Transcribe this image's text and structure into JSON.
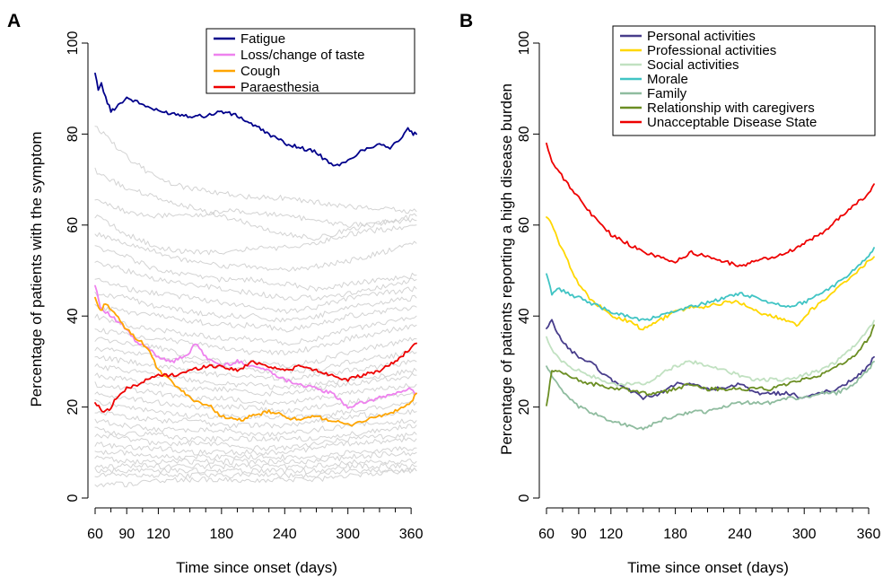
{
  "chart_data": [
    {
      "panel": "A",
      "type": "line",
      "xlabel": "Time since onset (days)",
      "ylabel": "Percentage of patients with the symptom",
      "xlim": [
        60,
        365
      ],
      "ylim": [
        0,
        100
      ],
      "xticks": [
        60,
        90,
        120,
        180,
        240,
        300,
        360
      ],
      "yticks": [
        0,
        20,
        40,
        60,
        80,
        100
      ],
      "legend_position": "top-right",
      "grid": false,
      "series": [
        {
          "name": "Fatigue",
          "color": "#00008b",
          "x": [
            60,
            63,
            66,
            70,
            75,
            80,
            90,
            100,
            110,
            120,
            135,
            150,
            165,
            180,
            195,
            210,
            225,
            240,
            255,
            270,
            280,
            290,
            300,
            310,
            320,
            330,
            340,
            350,
            357,
            362,
            365
          ],
          "y": [
            93,
            90,
            91,
            88,
            85,
            86,
            88,
            87,
            86,
            85,
            84.5,
            84,
            84,
            85,
            84,
            82,
            80,
            78,
            77,
            76,
            74,
            73,
            74,
            76,
            77,
            78,
            77,
            79,
            81,
            80,
            80
          ]
        },
        {
          "name": "Loss/change of taste",
          "color": "#ee82ee",
          "x": [
            60,
            65,
            70,
            80,
            90,
            100,
            110,
            120,
            135,
            150,
            155,
            165,
            180,
            195,
            210,
            225,
            240,
            255,
            270,
            285,
            300,
            315,
            330,
            345,
            360,
            365
          ],
          "y": [
            47,
            42,
            41,
            39,
            37,
            34,
            33,
            31,
            30,
            32,
            34,
            31,
            29,
            30,
            29,
            28,
            26,
            25,
            24,
            23,
            20,
            21,
            22,
            23,
            24,
            23
          ]
        },
        {
          "name": "Cough",
          "color": "#ffa500",
          "x": [
            60,
            65,
            70,
            80,
            90,
            100,
            110,
            120,
            130,
            140,
            150,
            160,
            170,
            180,
            195,
            210,
            225,
            240,
            255,
            270,
            285,
            300,
            315,
            330,
            345,
            360,
            365
          ],
          "y": [
            44,
            41,
            43,
            40,
            37,
            35,
            33,
            28,
            26,
            24,
            22,
            21,
            20,
            18,
            17,
            18,
            19,
            18,
            17,
            18,
            17,
            16,
            17,
            18,
            19,
            21,
            23
          ]
        },
        {
          "name": "Paraesthesia",
          "color": "#ee0000",
          "x": [
            60,
            65,
            70,
            75,
            80,
            90,
            100,
            110,
            120,
            135,
            150,
            165,
            180,
            195,
            210,
            225,
            240,
            255,
            270,
            285,
            300,
            315,
            330,
            345,
            360,
            365
          ],
          "y": [
            21,
            19.5,
            19,
            20,
            22,
            24,
            25,
            26,
            27,
            27,
            28,
            29,
            29,
            28,
            30,
            29,
            28,
            29,
            28,
            27,
            26,
            27,
            28,
            30,
            33,
            34
          ]
        }
      ],
      "background_series": {
        "color": "#d3d3d3",
        "series": [
          [
            82,
            75,
            70,
            68,
            67,
            66,
            66,
            65,
            64,
            63
          ],
          [
            72,
            68,
            66,
            64,
            62,
            60,
            58,
            57,
            59,
            62
          ],
          [
            66,
            63,
            62,
            62,
            63,
            63,
            62,
            61,
            60,
            61
          ],
          [
            62,
            58,
            55,
            54,
            54,
            55,
            55,
            56,
            58,
            60
          ],
          [
            58,
            56,
            54,
            52,
            51,
            51,
            50,
            51,
            52,
            56
          ],
          [
            55,
            53,
            50,
            49,
            48,
            48,
            47,
            46,
            47,
            49
          ],
          [
            52,
            50,
            48,
            47,
            46,
            45,
            44,
            44,
            45,
            48
          ],
          [
            48,
            46,
            45,
            44,
            43,
            42,
            41,
            42,
            44,
            46
          ],
          [
            45,
            44,
            42,
            41,
            40,
            40,
            39,
            40,
            42,
            44
          ],
          [
            42,
            41,
            40,
            39,
            38,
            38,
            37,
            38,
            40,
            42
          ],
          [
            40,
            38,
            37,
            36,
            35,
            35,
            34,
            35,
            37,
            40
          ],
          [
            37,
            36,
            35,
            34,
            33,
            32,
            32,
            33,
            35,
            38
          ],
          [
            35,
            34,
            33,
            31,
            30,
            30,
            29,
            30,
            32,
            35
          ],
          [
            33,
            32,
            31,
            30,
            29,
            28,
            28,
            28,
            30,
            32
          ],
          [
            31,
            30,
            29,
            28,
            27,
            27,
            26,
            27,
            28,
            30
          ],
          [
            29,
            28,
            27,
            26,
            25,
            25,
            24,
            25,
            26,
            28
          ],
          [
            27,
            26,
            25,
            24,
            24,
            23,
            23,
            24,
            25,
            27
          ],
          [
            25,
            24,
            23,
            22,
            22,
            21,
            21,
            22,
            23,
            25
          ],
          [
            23,
            22,
            21,
            20,
            20,
            20,
            19,
            20,
            21,
            23
          ],
          [
            21,
            20,
            19,
            18,
            18,
            18,
            18,
            18,
            19,
            21
          ],
          [
            19,
            18,
            17,
            17,
            16,
            16,
            16,
            17,
            18,
            19
          ],
          [
            17,
            16,
            15,
            15,
            15,
            14,
            14,
            15,
            16,
            17
          ],
          [
            15,
            14,
            14,
            13,
            13,
            13,
            13,
            13,
            14,
            16
          ],
          [
            14,
            13,
            12,
            12,
            12,
            11,
            11,
            12,
            13,
            14
          ],
          [
            12,
            11,
            11,
            10,
            10,
            10,
            10,
            11,
            12,
            13
          ],
          [
            10,
            10,
            9,
            9,
            9,
            9,
            9,
            9,
            10,
            11
          ],
          [
            9,
            8,
            8,
            8,
            8,
            8,
            8,
            8,
            9,
            10
          ],
          [
            7,
            7,
            7,
            7,
            7,
            7,
            7,
            7,
            8,
            8
          ],
          [
            6,
            6,
            6,
            6,
            6,
            6,
            6,
            6,
            7,
            7
          ],
          [
            5,
            5,
            5,
            5,
            5,
            5,
            5,
            5,
            6,
            6
          ],
          [
            3,
            3,
            4,
            4,
            4,
            4,
            4,
            4,
            5,
            6
          ]
        ],
        "x": [
          60,
          90,
          120,
          150,
          180,
          210,
          240,
          270,
          300,
          365
        ]
      }
    },
    {
      "panel": "B",
      "type": "line",
      "xlabel": "Time since onset (days)",
      "ylabel": "Percentage of patients reporting a high disease burden",
      "xlim": [
        60,
        365
      ],
      "ylim": [
        0,
        100
      ],
      "xticks": [
        60,
        90,
        120,
        180,
        240,
        300,
        360
      ],
      "yticks": [
        0,
        20,
        40,
        60,
        80,
        100
      ],
      "legend_position": "top-right",
      "grid": false,
      "series": [
        {
          "name": "Personal activities",
          "color": "#483d8b",
          "x": [
            60,
            65,
            70,
            80,
            90,
            100,
            110,
            120,
            135,
            150,
            165,
            180,
            195,
            210,
            225,
            240,
            255,
            270,
            285,
            300,
            315,
            330,
            345,
            360,
            365
          ],
          "y": [
            37,
            39,
            36,
            33,
            31,
            30,
            28,
            26,
            24,
            22,
            23,
            25,
            25,
            24,
            24,
            25,
            23,
            23,
            23,
            22,
            23,
            24,
            26,
            29,
            31
          ]
        },
        {
          "name": "Professional activities",
          "color": "#ffd700",
          "x": [
            60,
            65,
            70,
            80,
            90,
            100,
            110,
            120,
            135,
            150,
            165,
            180,
            195,
            210,
            225,
            240,
            255,
            270,
            285,
            295,
            300,
            315,
            330,
            345,
            360,
            365
          ],
          "y": [
            62,
            60,
            57,
            52,
            47,
            44,
            42,
            40,
            39,
            37,
            39,
            41,
            42,
            42,
            43,
            43,
            41,
            40,
            39,
            38,
            40,
            43,
            46,
            49,
            52,
            53
          ]
        },
        {
          "name": "Social activities",
          "color": "#c1e1c1",
          "x": [
            60,
            65,
            70,
            80,
            90,
            100,
            110,
            120,
            135,
            150,
            165,
            180,
            195,
            210,
            225,
            240,
            255,
            270,
            285,
            300,
            315,
            330,
            345,
            360,
            365
          ],
          "y": [
            35,
            33,
            31,
            29,
            28,
            27,
            26,
            25,
            25,
            25,
            27,
            29,
            30,
            29,
            28,
            27,
            26,
            26,
            26,
            27,
            28,
            30,
            33,
            37,
            39
          ]
        },
        {
          "name": "Morale",
          "color": "#40c4c4",
          "x": [
            60,
            65,
            70,
            80,
            90,
            100,
            110,
            120,
            135,
            150,
            165,
            180,
            195,
            210,
            225,
            240,
            255,
            270,
            285,
            300,
            315,
            330,
            345,
            360,
            365
          ],
          "y": [
            49,
            45,
            46,
            45,
            44,
            43,
            42,
            41,
            40,
            39,
            40,
            41,
            42,
            43,
            44,
            45,
            44,
            43,
            42,
            43,
            45,
            47,
            50,
            53,
            55
          ]
        },
        {
          "name": "Family",
          "color": "#8fbc9f",
          "x": [
            60,
            65,
            70,
            80,
            90,
            100,
            110,
            120,
            135,
            150,
            165,
            180,
            195,
            210,
            225,
            240,
            255,
            270,
            285,
            300,
            315,
            330,
            345,
            360,
            365
          ],
          "y": [
            29,
            27,
            25,
            22,
            20,
            19,
            18,
            17,
            16,
            15,
            17,
            18,
            19,
            19,
            20,
            21,
            21,
            21,
            22,
            22,
            23,
            23,
            25,
            28,
            30
          ]
        },
        {
          "name": "Relationship with caregivers",
          "color": "#6b8e23",
          "x": [
            60,
            65,
            70,
            80,
            90,
            100,
            110,
            120,
            135,
            150,
            165,
            180,
            195,
            210,
            225,
            240,
            255,
            270,
            285,
            300,
            315,
            330,
            345,
            360,
            365
          ],
          "y": [
            20,
            28,
            28,
            27,
            26,
            25,
            25,
            24,
            24,
            23,
            23,
            24,
            25,
            24,
            24,
            24,
            24,
            24,
            25,
            26,
            27,
            29,
            31,
            35,
            38
          ]
        },
        {
          "name": "Unacceptable Disease State",
          "color": "#ee0000",
          "x": [
            60,
            65,
            70,
            80,
            90,
            100,
            110,
            120,
            135,
            150,
            165,
            180,
            195,
            210,
            225,
            240,
            255,
            270,
            285,
            300,
            315,
            330,
            345,
            360,
            365
          ],
          "y": [
            78,
            74,
            72,
            69,
            66,
            63,
            60,
            58,
            56,
            54,
            53,
            52,
            54,
            53,
            52,
            51,
            52,
            53,
            54,
            56,
            58,
            61,
            64,
            67,
            69
          ]
        }
      ]
    }
  ]
}
